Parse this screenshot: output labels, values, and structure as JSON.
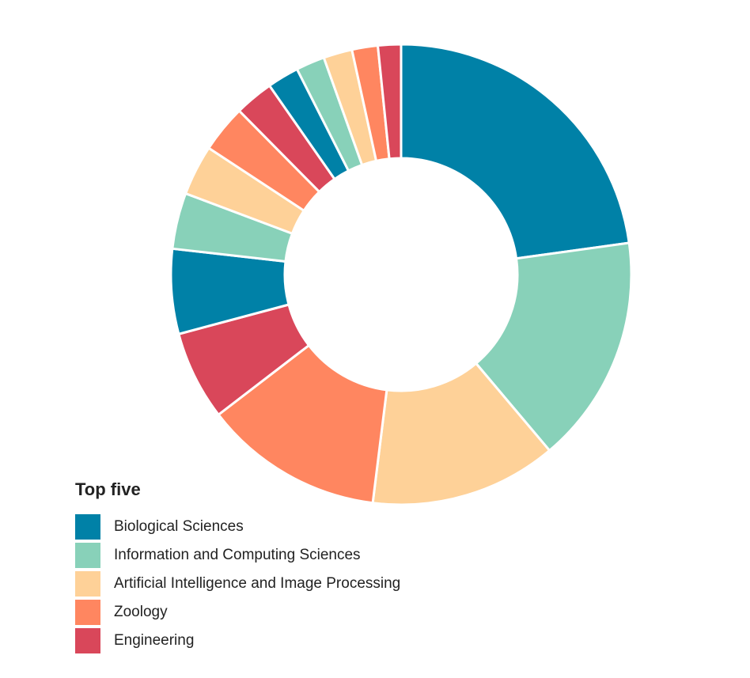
{
  "chart_data": {
    "type": "pie",
    "variant": "donut",
    "title": "",
    "slices": [
      {
        "value": 22.6,
        "color": "#0081a7"
      },
      {
        "value": 15.9,
        "color": "#88d1b9"
      },
      {
        "value": 13.0,
        "color": "#fed198"
      },
      {
        "value": 12.5,
        "color": "#ff8660"
      },
      {
        "value": 6.2,
        "color": "#d9475a"
      },
      {
        "value": 5.9,
        "color": "#0081a7"
      },
      {
        "value": 3.9,
        "color": "#88d1b9"
      },
      {
        "value": 3.5,
        "color": "#fed198"
      },
      {
        "value": 3.3,
        "color": "#ff8660"
      },
      {
        "value": 2.7,
        "color": "#d9475a"
      },
      {
        "value": 2.2,
        "color": "#0081a7"
      },
      {
        "value": 2.0,
        "color": "#88d1b9"
      },
      {
        "value": 2.0,
        "color": "#fed198"
      },
      {
        "value": 1.8,
        "color": "#ff8660"
      },
      {
        "value": 1.6,
        "color": "#d9475a"
      }
    ],
    "legend": {
      "title": "Top five",
      "placement": "bottom-left",
      "items": [
        {
          "label": "Biological Sciences",
          "color": "#0081a7"
        },
        {
          "label": "Information and Computing Sciences",
          "color": "#88d1b9"
        },
        {
          "label": "Artificial Intelligence and Image Processing",
          "color": "#fed198"
        },
        {
          "label": "Zoology",
          "color": "#ff8660"
        },
        {
          "label": "Engineering",
          "color": "#d9475a"
        }
      ]
    }
  }
}
